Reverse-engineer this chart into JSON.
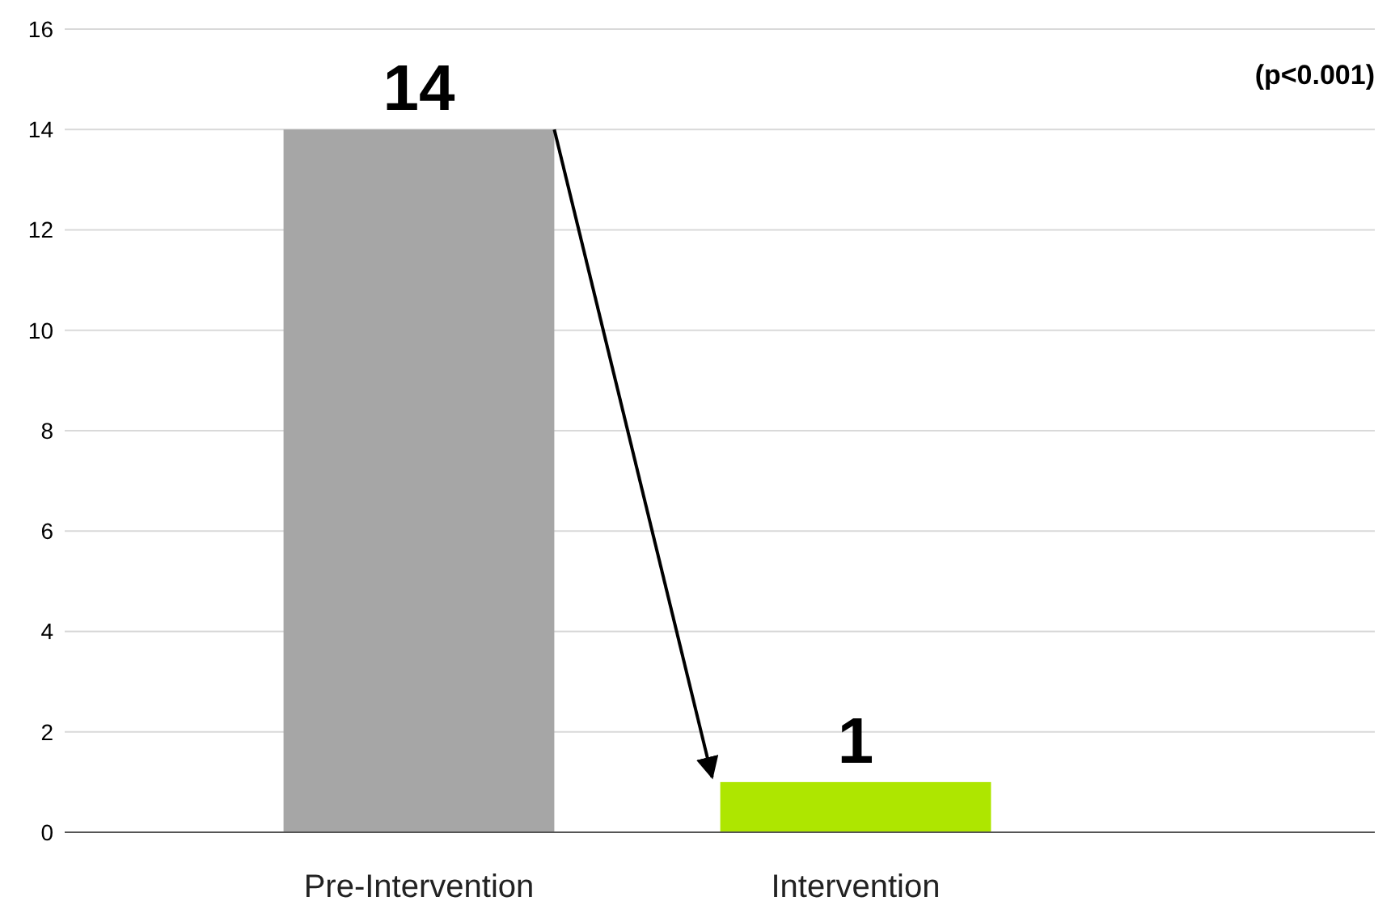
{
  "chart_data": {
    "type": "bar",
    "categories": [
      "Pre-Intervention",
      "Intervention"
    ],
    "values": [
      14,
      1
    ],
    "colors": [
      "#a6a6a6",
      "#aee600"
    ],
    "ylim": [
      0,
      16
    ],
    "yticks": [
      0,
      2,
      4,
      6,
      8,
      10,
      12,
      14,
      16
    ],
    "grid": "y",
    "data_labels": true,
    "annotations": [
      "(p<0.001)"
    ]
  }
}
